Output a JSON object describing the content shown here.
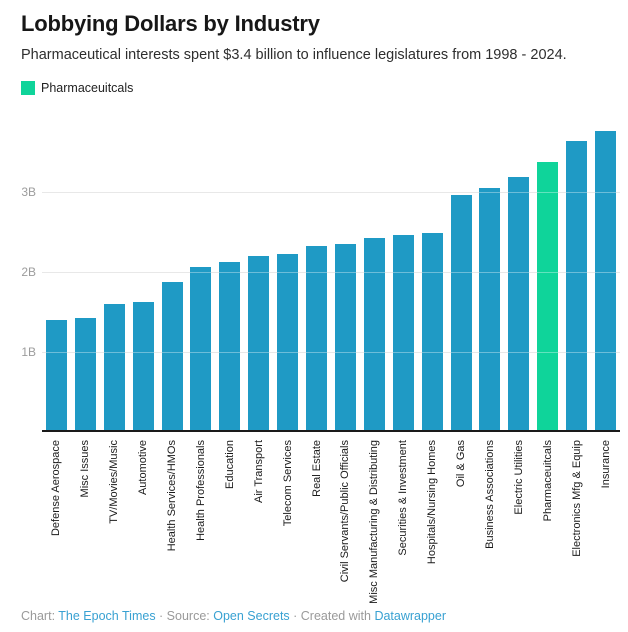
{
  "header": {
    "title": "Lobbying Dollars by Industry",
    "subtitle": "Pharmaceutical interests spent $3.4 billion to influence legislatures from 1998 - 2024."
  },
  "legend": {
    "items": [
      {
        "label": "Pharmaceuitcals",
        "color": "#0fd49a"
      }
    ]
  },
  "chart_data": {
    "type": "bar",
    "title": "Lobbying Dollars by Industry",
    "unit": "billions of dollars",
    "categories": [
      "Defense Aerospace",
      "Misc Issues",
      "TV/Movies/Music",
      "Automotive",
      "Health Services/HMOs",
      "Health Professionals",
      "Education",
      "Air Transport",
      "Telecom Services",
      "Real Estate",
      "Civil Servants/Public Officials",
      "Misc Manufacturing & Distributing",
      "Securities & Investment",
      "Hospitals/Nursing Homes",
      "Oil & Gas",
      "Business Associations",
      "Electric Utilities",
      "Pharmaceuitcals",
      "Electronics Mfg & Equip",
      "Insurance"
    ],
    "values": [
      1.4,
      1.43,
      1.6,
      1.63,
      1.88,
      2.06,
      2.12,
      2.2,
      2.23,
      2.32,
      2.35,
      2.42,
      2.46,
      2.49,
      2.96,
      3.05,
      3.19,
      3.37,
      3.64,
      3.76
    ],
    "highlight_index": 17,
    "bar_color": "#1f9ac5",
    "highlight_color": "#0fd49a",
    "y_ticks": [
      {
        "value": 1,
        "label": "1B"
      },
      {
        "value": 2,
        "label": "2B"
      },
      {
        "value": 3,
        "label": "3B"
      }
    ],
    "ylim": [
      0,
      3.9
    ],
    "grid": true,
    "legend_position": "top-left"
  },
  "footer": {
    "chart_prefix": "Chart: ",
    "chart_credit": "The Epoch Times",
    "separator1": " · ",
    "source_prefix": "Source: ",
    "source_credit": "Open Secrets",
    "separator2": " · ",
    "created_prefix": "Created with ",
    "created_credit": "Datawrapper"
  },
  "colors": {
    "link": "#38a1d2",
    "muted_text": "#9a9a9a",
    "gridline": "#dcdcdc",
    "axis_line": "#1a1a1a"
  }
}
